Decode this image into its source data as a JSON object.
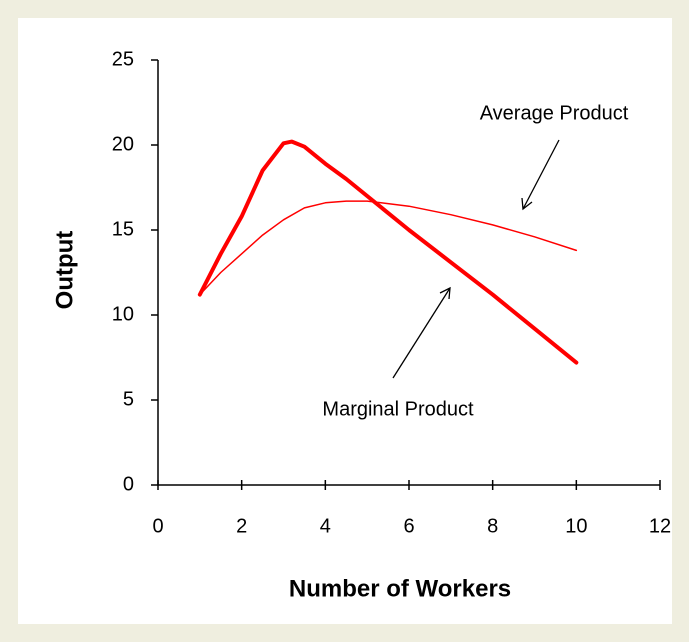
{
  "chart_data": {
    "type": "line",
    "xlabel": "Number of Workers",
    "ylabel": "Output",
    "xlim": [
      0,
      12
    ],
    "xticks": [
      0,
      2,
      4,
      6,
      8,
      10,
      12
    ],
    "ylim": [
      0,
      25
    ],
    "yticks": [
      0,
      5,
      10,
      15,
      20,
      25
    ],
    "series": [
      {
        "name": "Marginal Product",
        "color": "#ff0000",
        "width": 4,
        "x": [
          1,
          1.5,
          2,
          2.5,
          3,
          3.2,
          3.5,
          4,
          4.5,
          5,
          6,
          7,
          8,
          9,
          10
        ],
        "values": [
          11.2,
          13.6,
          15.8,
          18.5,
          20.1,
          20.2,
          19.9,
          18.9,
          18.0,
          17.0,
          15.0,
          13.1,
          11.2,
          9.2,
          7.2
        ]
      },
      {
        "name": "Average Product",
        "color": "#ff0000",
        "width": 1.5,
        "x": [
          1,
          1.5,
          2,
          2.5,
          3,
          3.5,
          4,
          4.5,
          5,
          6,
          7,
          8,
          9,
          10
        ],
        "values": [
          11.2,
          12.5,
          13.6,
          14.7,
          15.6,
          16.3,
          16.6,
          16.7,
          16.7,
          16.4,
          15.9,
          15.3,
          14.6,
          13.8
        ]
      }
    ],
    "annotations": [
      {
        "text": "Average Product"
      },
      {
        "text": "Marginal Product"
      }
    ]
  }
}
